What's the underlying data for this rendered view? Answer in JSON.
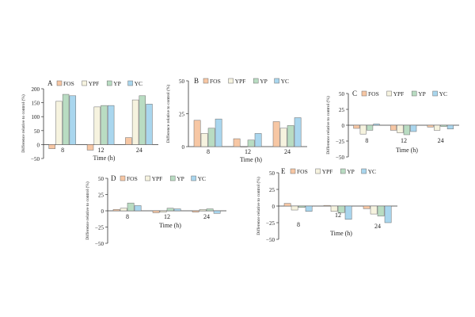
{
  "legend_items": [
    "FOS",
    "YPF",
    "YP",
    "YC"
  ],
  "colors": {
    "FOS": "#f7c7a4",
    "YPF": "#f6f3df",
    "YP": "#b9dcc2",
    "YC": "#a9d6ee",
    "stroke": "#6b6b6b",
    "axis": "#333333"
  },
  "chart_data": [
    {
      "panel": "A",
      "type": "bar",
      "categories": [
        "8",
        "12",
        "24"
      ],
      "series": [
        {
          "name": "FOS",
          "values": [
            -15,
            -20,
            25
          ]
        },
        {
          "name": "YPF",
          "values": [
            155,
            135,
            160
          ]
        },
        {
          "name": "YP",
          "values": [
            180,
            140,
            175
          ]
        },
        {
          "name": "YC",
          "values": [
            175,
            140,
            145
          ]
        }
      ],
      "xlabel": "Time (h)",
      "ylabel": "Difference relative to control (%)",
      "ylim": [
        -50,
        200
      ],
      "yticks": [
        -50,
        0,
        50,
        100,
        150,
        200
      ]
    },
    {
      "panel": "B",
      "type": "bar",
      "categories": [
        "8",
        "12",
        "24"
      ],
      "series": [
        {
          "name": "FOS",
          "values": [
            20,
            6,
            19
          ]
        },
        {
          "name": "YPF",
          "values": [
            10,
            0,
            14
          ]
        },
        {
          "name": "YP",
          "values": [
            14,
            5,
            16
          ]
        },
        {
          "name": "YC",
          "values": [
            21,
            10,
            22
          ]
        }
      ],
      "xlabel": "Time (h)",
      "ylabel": "Difference relative to control (%)",
      "ylim": [
        0,
        50
      ],
      "yticks": [
        0,
        25,
        50
      ]
    },
    {
      "panel": "C",
      "type": "bar",
      "categories": [
        "8",
        "12",
        "24"
      ],
      "series": [
        {
          "name": "FOS",
          "values": [
            -5,
            -8,
            -3
          ]
        },
        {
          "name": "YPF",
          "values": [
            -14,
            -12,
            -8
          ]
        },
        {
          "name": "YP",
          "values": [
            -8,
            -15,
            -2
          ]
        },
        {
          "name": "YC",
          "values": [
            2,
            -10,
            -6
          ]
        }
      ],
      "xlabel": "Time (h)",
      "ylabel": "Difference relative to control (%)",
      "ylim": [
        -50,
        50
      ],
      "yticks": [
        -50,
        -25,
        0,
        25,
        50
      ]
    },
    {
      "panel": "D",
      "type": "bar",
      "categories": [
        "8",
        "12",
        "24"
      ],
      "series": [
        {
          "name": "FOS",
          "values": [
            2,
            -3,
            -2
          ]
        },
        {
          "name": "YPF",
          "values": [
            4,
            -2,
            2
          ]
        },
        {
          "name": "YP",
          "values": [
            12,
            4,
            3
          ]
        },
        {
          "name": "YC",
          "values": [
            8,
            3,
            -4
          ]
        }
      ],
      "xlabel": "Time (h)",
      "ylabel": "Difference relative to control (%)",
      "ylim": [
        -50,
        50
      ],
      "yticks": [
        -50,
        -25,
        0,
        25,
        50
      ]
    },
    {
      "panel": "E",
      "type": "bar",
      "categories": [
        "8",
        "12",
        "24"
      ],
      "series": [
        {
          "name": "FOS",
          "values": [
            4,
            1,
            -4
          ]
        },
        {
          "name": "YPF",
          "values": [
            -6,
            -8,
            -12
          ]
        },
        {
          "name": "YP",
          "values": [
            -2,
            -10,
            -15
          ]
        },
        {
          "name": "YC",
          "values": [
            -8,
            -20,
            -25
          ]
        }
      ],
      "xlabel": "Time (h)",
      "ylabel": "Difference relative to control (%)",
      "ylim": [
        -50,
        50
      ],
      "yticks": [
        -50,
        -25,
        0,
        25,
        50
      ]
    }
  ]
}
